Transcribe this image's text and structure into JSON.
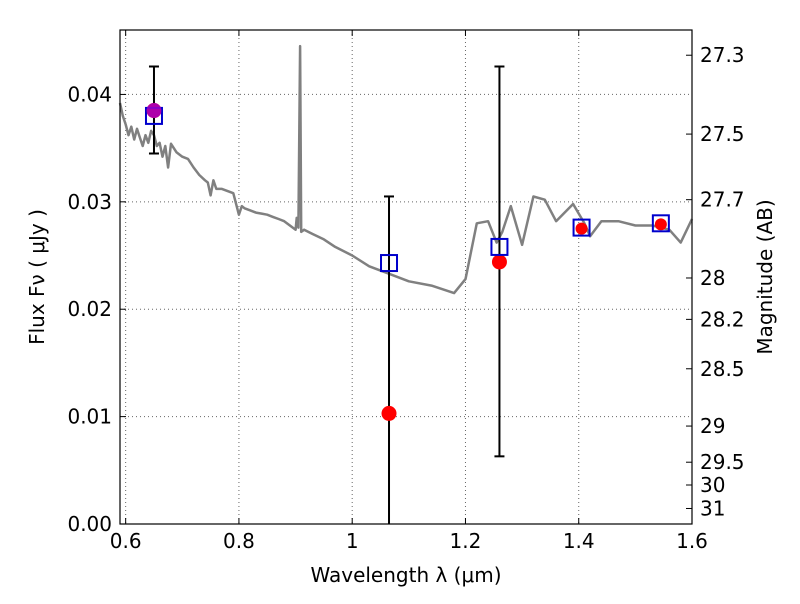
{
  "chart_data": {
    "type": "scatter",
    "title": "",
    "xlabel": "Wavelength  λ (μm)",
    "ylabel": "Flux  Fν  ( μJy )",
    "y2label": "Magnitude (AB)",
    "xlim": [
      0.59,
      1.6
    ],
    "ylim": [
      0.0,
      0.046
    ],
    "grid": true,
    "x_ticks": [
      {
        "value": 0.6,
        "label": "0.6"
      },
      {
        "value": 0.8,
        "label": "0.8"
      },
      {
        "value": 1.0,
        "label": "1"
      },
      {
        "value": 1.2,
        "label": "1.2"
      },
      {
        "value": 1.4,
        "label": "1.4"
      },
      {
        "value": 1.6,
        "label": "1.6"
      }
    ],
    "y_ticks": [
      {
        "value": 0.0,
        "label": "0.00"
      },
      {
        "value": 0.01,
        "label": "0.01"
      },
      {
        "value": 0.02,
        "label": "0.02"
      },
      {
        "value": 0.03,
        "label": "0.03"
      },
      {
        "value": 0.04,
        "label": "0.04"
      }
    ],
    "mag_ticks": [
      "27.3",
      "27.5",
      "27.7",
      "28",
      "28.2",
      "28.5",
      "29",
      "29.5",
      "30",
      "31"
    ],
    "colors": {
      "model": "#808080",
      "observed": "#ff0000",
      "model_photometry": "#0000cc",
      "errorbar": "#000000",
      "grid": "#666666"
    },
    "model_spectrum": {
      "x": [
        0.59,
        0.595,
        0.6,
        0.605,
        0.61,
        0.615,
        0.62,
        0.625,
        0.63,
        0.635,
        0.64,
        0.645,
        0.65,
        0.655,
        0.66,
        0.665,
        0.67,
        0.675,
        0.68,
        0.69,
        0.7,
        0.71,
        0.72,
        0.73,
        0.74,
        0.745,
        0.75,
        0.755,
        0.76,
        0.77,
        0.78,
        0.79,
        0.8,
        0.805,
        0.81,
        0.82,
        0.83,
        0.84,
        0.85,
        0.86,
        0.87,
        0.88,
        0.89,
        0.9,
        0.902,
        0.905,
        0.908,
        0.91,
        0.915,
        0.93,
        0.95,
        0.97,
        1.0,
        1.03,
        1.06,
        1.1,
        1.14,
        1.18,
        1.2,
        1.22,
        1.24,
        1.255,
        1.265,
        1.28,
        1.3,
        1.32,
        1.34,
        1.36,
        1.39,
        1.41,
        1.42,
        1.44,
        1.47,
        1.5,
        1.53,
        1.56,
        1.58,
        1.6
      ],
      "y": [
        0.0392,
        0.038,
        0.0372,
        0.0362,
        0.037,
        0.0358,
        0.0368,
        0.036,
        0.0352,
        0.0362,
        0.0355,
        0.0366,
        0.0362,
        0.0352,
        0.0355,
        0.0342,
        0.0352,
        0.0332,
        0.0354,
        0.0346,
        0.0342,
        0.034,
        0.0332,
        0.0325,
        0.032,
        0.0318,
        0.0306,
        0.032,
        0.0312,
        0.0312,
        0.031,
        0.0308,
        0.0288,
        0.0296,
        0.0294,
        0.0292,
        0.029,
        0.0289,
        0.0288,
        0.0286,
        0.0284,
        0.0282,
        0.0278,
        0.0274,
        0.0285,
        0.0276,
        0.0445,
        0.0272,
        0.0274,
        0.027,
        0.0265,
        0.0258,
        0.025,
        0.024,
        0.0234,
        0.0226,
        0.0222,
        0.0215,
        0.0228,
        0.028,
        0.0282,
        0.0262,
        0.0272,
        0.0296,
        0.026,
        0.0305,
        0.0302,
        0.0282,
        0.0298,
        0.028,
        0.0268,
        0.0282,
        0.0282,
        0.0278,
        0.0278,
        0.0274,
        0.0262,
        0.0284
      ]
    },
    "observed_points": [
      {
        "x": 0.65,
        "y": 0.0385,
        "yerr_low": 0.0345,
        "yerr_high": 0.0426
      },
      {
        "x": 1.065,
        "y": 0.0103,
        "yerr_low": 0.0,
        "yerr_high": 0.0305
      },
      {
        "x": 1.26,
        "y": 0.0244,
        "yerr_low": 0.0063,
        "yerr_high": 0.0426
      },
      {
        "x": 1.405,
        "y": 0.0275,
        "yerr_low": null,
        "yerr_high": null
      },
      {
        "x": 1.545,
        "y": 0.0279,
        "yerr_low": null,
        "yerr_high": null
      }
    ],
    "model_photometry": [
      {
        "x": 0.65,
        "y": 0.038
      },
      {
        "x": 1.065,
        "y": 0.0243
      },
      {
        "x": 1.26,
        "y": 0.0258
      },
      {
        "x": 1.405,
        "y": 0.0276
      },
      {
        "x": 1.545,
        "y": 0.028
      }
    ]
  }
}
